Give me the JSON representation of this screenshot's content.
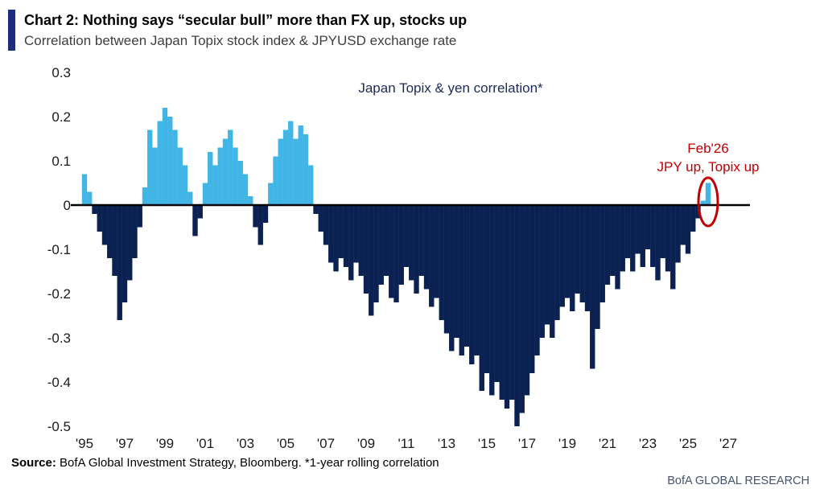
{
  "header": {
    "title": "Chart 2: Nothing says “secular bull” more than FX up, stocks up",
    "subtitle": "Correlation between Japan Topix stock index & JPYUSD exchange rate"
  },
  "colors": {
    "accent_bar": "#1e2c7d",
    "series_label": "#1b2a57",
    "brand_text": "#44546a",
    "zero_line": "#000000"
  },
  "source": {
    "label": "Source:",
    "text": " BofA Global Investment Strategy, Bloomberg. *1-year rolling correlation"
  },
  "footer": {
    "brand": "BofA GLOBAL RESEARCH"
  },
  "chart_data": {
    "type": "bar",
    "title": "Japan Topix & yen correlation*",
    "xlabel": "",
    "ylabel": "",
    "legend": "none",
    "grid": false,
    "x_axis": {
      "min": 1995,
      "max": 2027.5,
      "tick_years": [
        1995,
        1997,
        1999,
        2001,
        2003,
        2005,
        2007,
        2009,
        2011,
        2013,
        2015,
        2017,
        2019,
        2021,
        2023,
        2025,
        2027
      ],
      "tick_labels": [
        "'95",
        "'97",
        "'99",
        "'01",
        "'03",
        "'05",
        "'07",
        "'09",
        "'11",
        "'13",
        "'15",
        "'17",
        "'19",
        "'21",
        "'23",
        "'25",
        "'27"
      ]
    },
    "y_axis": {
      "min": -0.5,
      "max": 0.3,
      "tick_values": [
        0.3,
        0.2,
        0.1,
        0,
        -0.1,
        -0.2,
        -0.3,
        -0.4,
        -0.5
      ],
      "tick_labels": [
        "0.3",
        "0.2",
        "0.1",
        "0",
        "-0.1",
        "-0.2",
        "-0.3",
        "-0.4",
        "-0.5"
      ]
    },
    "colors": {
      "positive": "#41b6e6",
      "negative": "#0a2151"
    },
    "annotation": {
      "line1": "Feb'26",
      "line2": "JPY up, Topix up",
      "color": "#c00000",
      "target": "last bar circled"
    },
    "series": [
      {
        "name": "1-year rolling correlation, Japan Topix & JPYUSD",
        "points": [
          [
            1995.0,
            0.07
          ],
          [
            1995.25,
            0.03
          ],
          [
            1995.5,
            -0.02
          ],
          [
            1995.75,
            -0.06
          ],
          [
            1996.0,
            -0.09
          ],
          [
            1996.25,
            -0.12
          ],
          [
            1996.5,
            -0.16
          ],
          [
            1996.75,
            -0.26
          ],
          [
            1997.0,
            -0.22
          ],
          [
            1997.25,
            -0.17
          ],
          [
            1997.5,
            -0.12
          ],
          [
            1997.75,
            -0.05
          ],
          [
            1998.0,
            0.04
          ],
          [
            1998.25,
            0.17
          ],
          [
            1998.5,
            0.13
          ],
          [
            1998.75,
            0.19
          ],
          [
            1999.0,
            0.22
          ],
          [
            1999.25,
            0.2
          ],
          [
            1999.5,
            0.17
          ],
          [
            1999.75,
            0.13
          ],
          [
            2000.0,
            0.09
          ],
          [
            2000.25,
            0.03
          ],
          [
            2000.5,
            -0.07
          ],
          [
            2000.75,
            -0.03
          ],
          [
            2001.0,
            0.05
          ],
          [
            2001.25,
            0.12
          ],
          [
            2001.5,
            0.09
          ],
          [
            2001.75,
            0.13
          ],
          [
            2002.0,
            0.15
          ],
          [
            2002.25,
            0.17
          ],
          [
            2002.5,
            0.13
          ],
          [
            2002.75,
            0.1
          ],
          [
            2003.0,
            0.07
          ],
          [
            2003.25,
            0.02
          ],
          [
            2003.5,
            -0.05
          ],
          [
            2003.75,
            -0.09
          ],
          [
            2004.0,
            -0.04
          ],
          [
            2004.25,
            0.05
          ],
          [
            2004.5,
            0.11
          ],
          [
            2004.75,
            0.15
          ],
          [
            2005.0,
            0.17
          ],
          [
            2005.25,
            0.19
          ],
          [
            2005.5,
            0.15
          ],
          [
            2005.75,
            0.18
          ],
          [
            2006.0,
            0.16
          ],
          [
            2006.25,
            0.09
          ],
          [
            2006.5,
            -0.02
          ],
          [
            2006.75,
            -0.06
          ],
          [
            2007.0,
            -0.09
          ],
          [
            2007.25,
            -0.13
          ],
          [
            2007.5,
            -0.15
          ],
          [
            2007.75,
            -0.12
          ],
          [
            2008.0,
            -0.14
          ],
          [
            2008.25,
            -0.17
          ],
          [
            2008.5,
            -0.13
          ],
          [
            2008.75,
            -0.16
          ],
          [
            2009.0,
            -0.2
          ],
          [
            2009.25,
            -0.25
          ],
          [
            2009.5,
            -0.22
          ],
          [
            2009.75,
            -0.18
          ],
          [
            2010.0,
            -0.16
          ],
          [
            2010.25,
            -0.21
          ],
          [
            2010.5,
            -0.22
          ],
          [
            2010.75,
            -0.18
          ],
          [
            2011.0,
            -0.14
          ],
          [
            2011.25,
            -0.17
          ],
          [
            2011.5,
            -0.2
          ],
          [
            2011.75,
            -0.16
          ],
          [
            2012.0,
            -0.19
          ],
          [
            2012.25,
            -0.23
          ],
          [
            2012.5,
            -0.21
          ],
          [
            2012.75,
            -0.26
          ],
          [
            2013.0,
            -0.29
          ],
          [
            2013.25,
            -0.33
          ],
          [
            2013.5,
            -0.3
          ],
          [
            2013.75,
            -0.34
          ],
          [
            2014.0,
            -0.32
          ],
          [
            2014.25,
            -0.36
          ],
          [
            2014.5,
            -0.34
          ],
          [
            2014.75,
            -0.42
          ],
          [
            2015.0,
            -0.38
          ],
          [
            2015.25,
            -0.43
          ],
          [
            2015.5,
            -0.4
          ],
          [
            2015.75,
            -0.44
          ],
          [
            2016.0,
            -0.46
          ],
          [
            2016.25,
            -0.44
          ],
          [
            2016.5,
            -0.5
          ],
          [
            2016.75,
            -0.47
          ],
          [
            2017.0,
            -0.43
          ],
          [
            2017.25,
            -0.38
          ],
          [
            2017.5,
            -0.34
          ],
          [
            2017.75,
            -0.3
          ],
          [
            2018.0,
            -0.27
          ],
          [
            2018.25,
            -0.3
          ],
          [
            2018.5,
            -0.26
          ],
          [
            2018.75,
            -0.23
          ],
          [
            2019.0,
            -0.21
          ],
          [
            2019.25,
            -0.24
          ],
          [
            2019.5,
            -0.2
          ],
          [
            2019.75,
            -0.22
          ],
          [
            2020.0,
            -0.24
          ],
          [
            2020.25,
            -0.37
          ],
          [
            2020.5,
            -0.28
          ],
          [
            2020.75,
            -0.22
          ],
          [
            2021.0,
            -0.18
          ],
          [
            2021.25,
            -0.16
          ],
          [
            2021.5,
            -0.19
          ],
          [
            2021.75,
            -0.15
          ],
          [
            2022.0,
            -0.12
          ],
          [
            2022.25,
            -0.15
          ],
          [
            2022.5,
            -0.11
          ],
          [
            2022.75,
            -0.14
          ],
          [
            2023.0,
            -0.1
          ],
          [
            2023.25,
            -0.14
          ],
          [
            2023.5,
            -0.17
          ],
          [
            2023.75,
            -0.12
          ],
          [
            2024.0,
            -0.15
          ],
          [
            2024.25,
            -0.19
          ],
          [
            2024.5,
            -0.13
          ],
          [
            2024.75,
            -0.09
          ],
          [
            2025.0,
            -0.11
          ],
          [
            2025.25,
            -0.06
          ],
          [
            2025.5,
            -0.03
          ],
          [
            2025.75,
            0.01
          ],
          [
            2026.0,
            0.05
          ]
        ]
      }
    ]
  }
}
